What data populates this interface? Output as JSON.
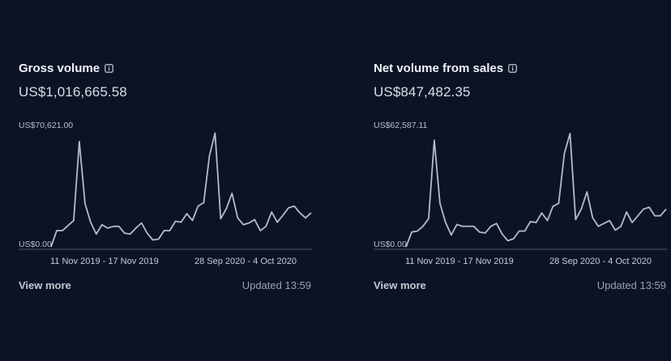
{
  "colors": {
    "background": "#0b1426",
    "line": "#b6bcc6",
    "baseline": "#4a5366"
  },
  "cards": [
    {
      "title": "Gross volume",
      "info_icon": "info-icon",
      "amount": "US$1,016,665.58",
      "max_label": "US$70,621.00",
      "zero_label": "US$0.00",
      "range_start_label": "11 Nov 2019 - 17 Nov 2019",
      "range_end_label": "28 Sep 2020 - 4 Oct 2020",
      "view_more": "View more",
      "updated": "Updated 13:59",
      "chart_data": {
        "type": "line",
        "ylim": [
          0,
          70621
        ],
        "values": [
          1500,
          11000,
          11000,
          14000,
          17000,
          63500,
          27000,
          16000,
          9000,
          14500,
          12500,
          13500,
          13500,
          9500,
          9000,
          12500,
          15500,
          9500,
          5500,
          6000,
          11000,
          11000,
          16500,
          16000,
          21000,
          17000,
          25500,
          27500,
          55000,
          68500,
          18000,
          24000,
          33000,
          18500,
          14500,
          15500,
          17500,
          11000,
          13500,
          22000,
          16000,
          20000,
          24500,
          25500,
          21500,
          18500,
          21500
        ]
      }
    },
    {
      "title": "Net volume from sales",
      "info_icon": "info-icon",
      "amount": "US$847,482.35",
      "max_label": "US$62,587.11",
      "zero_label": "US$0.00",
      "range_start_label": "11 Nov 2019 - 17 Nov 2019",
      "range_end_label": "28 Sep 2020 - 4 Oct 2020",
      "view_more": "View more",
      "updated": "Updated 13:59",
      "chart_data": {
        "type": "line",
        "ylim": [
          0,
          62587
        ],
        "values": [
          1200,
          9000,
          9500,
          12000,
          16000,
          57000,
          24000,
          14000,
          7500,
          13000,
          12000,
          12000,
          12000,
          9000,
          8500,
          12000,
          13500,
          8000,
          4500,
          5500,
          9500,
          9500,
          14500,
          14000,
          19000,
          15000,
          22500,
          24000,
          50000,
          60500,
          15500,
          21000,
          30000,
          16500,
          12000,
          13500,
          15000,
          10000,
          12000,
          19500,
          14000,
          17500,
          21000,
          22000,
          17500,
          17500,
          21000
        ]
      }
    }
  ]
}
